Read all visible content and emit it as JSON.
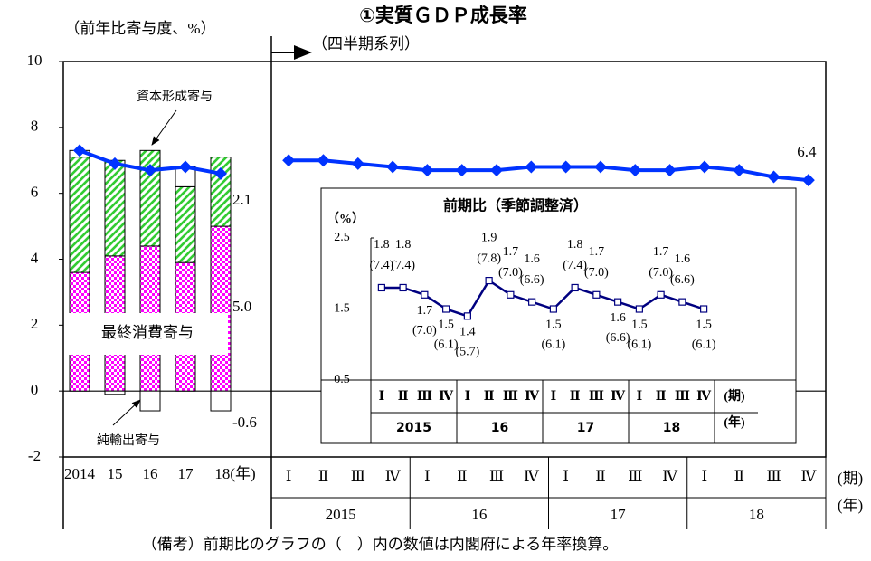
{
  "chart_data": [
    {
      "type": "bar",
      "title": "①実質ＧＤＰ成長率",
      "subtitle": "（四半期系列）",
      "y_label": "（前年比寄与度、%）",
      "ylim": [
        -2,
        10
      ],
      "yticks": [
        -2,
        0,
        2,
        4,
        6,
        8,
        10
      ],
      "categories": [
        "2014",
        "15",
        "16",
        "17",
        "18(年)"
      ],
      "series": [
        {
          "name": "最終消費寄与",
          "color": "#ff00ff",
          "values": [
            3.6,
            4.1,
            4.4,
            3.9,
            5.0
          ],
          "value_labels": [
            null,
            null,
            null,
            null,
            "5.0"
          ]
        },
        {
          "name": "資本形成寄与",
          "color": "#33cc33",
          "values": [
            3.5,
            2.9,
            2.9,
            2.3,
            2.1
          ],
          "value_labels": [
            null,
            null,
            null,
            null,
            "2.1"
          ]
        },
        {
          "name": "純輸出寄与",
          "color": "#ffffff",
          "values": [
            0.2,
            -0.1,
            -0.6,
            0.6,
            -0.6
          ],
          "value_labels": [
            null,
            null,
            null,
            null,
            "-0.6"
          ]
        }
      ],
      "annual_gdp": {
        "color": "#0033ff",
        "values": [
          7.3,
          6.9,
          6.7,
          6.8,
          6.6
        ]
      },
      "quarters": {
        "categories": [
          "Ⅰ",
          "Ⅱ",
          "Ⅲ",
          "Ⅳ",
          "Ⅰ",
          "Ⅱ",
          "Ⅲ",
          "Ⅳ",
          "Ⅰ",
          "Ⅱ",
          "Ⅲ",
          "Ⅳ",
          "Ⅰ",
          "Ⅱ",
          "Ⅲ",
          "Ⅳ"
        ],
        "years": [
          "2015",
          "16",
          "17",
          "18"
        ],
        "period_unit": "(期)",
        "year_unit": "(年)",
        "color": "#0033ff",
        "values": [
          7.0,
          7.0,
          6.9,
          6.8,
          6.7,
          6.7,
          6.7,
          6.8,
          6.8,
          6.8,
          6.7,
          6.7,
          6.8,
          6.7,
          6.5,
          6.4
        ]
      }
    },
    {
      "type": "line",
      "title": "前期比（季節調整済）",
      "y_label": "（%）",
      "ylim": [
        0.5,
        2.5
      ],
      "yticks": [
        0.5,
        1.5,
        2.5
      ],
      "categories": [
        "Ⅰ",
        "Ⅱ",
        "Ⅲ",
        "Ⅳ",
        "Ⅰ",
        "Ⅱ",
        "Ⅲ",
        "Ⅳ",
        "Ⅰ",
        "Ⅱ",
        "Ⅲ",
        "Ⅳ",
        "Ⅰ",
        "Ⅱ",
        "Ⅲ",
        "Ⅳ"
      ],
      "years": [
        "2015",
        "16",
        "17",
        "18"
      ],
      "period_unit": "(期)",
      "year_unit": "(年)",
      "color": "#000080",
      "values": [
        1.8,
        1.8,
        1.7,
        1.5,
        1.4,
        1.9,
        1.7,
        1.6,
        1.5,
        1.8,
        1.7,
        1.6,
        1.5,
        1.7,
        1.6,
        1.5
      ],
      "annualized_values": [
        7.4,
        7.4,
        7.0,
        6.1,
        5.7,
        7.8,
        7.0,
        6.6,
        6.1,
        7.4,
        7.0,
        6.6,
        6.1,
        7.0,
        6.6,
        6.1
      ],
      "annualized_labels": [
        "(7.4)",
        "(7.4)",
        "(7.0)",
        "(6.1)",
        "(5.7)",
        "(7.8)",
        "(7.0)",
        "(6.6)",
        "(6.1)",
        "(7.4)",
        "(7.0)",
        "(6.6)",
        "(6.1)",
        "(7.0)",
        "(6.6)",
        "(6.1)"
      ]
    }
  ],
  "note": "（備考）前期比のグラフの（　）内の数値は内閣府による年率換算。"
}
